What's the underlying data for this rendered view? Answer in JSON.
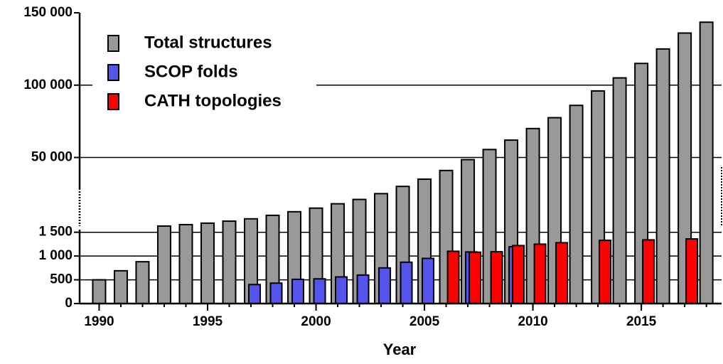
{
  "chart_data": {
    "type": "bar",
    "x_label": "Year",
    "x": [
      1990,
      1991,
      1992,
      1993,
      1994,
      1995,
      1996,
      1997,
      1998,
      1999,
      2000,
      2001,
      2002,
      2003,
      2004,
      2005,
      2006,
      2007,
      2008,
      2009,
      2010,
      2011,
      2012,
      2013,
      2014,
      2015,
      2016,
      2017,
      2018
    ],
    "xlim": [
      1989.1,
      2018.7
    ],
    "xticks": [
      1990,
      1995,
      2000,
      2005,
      2010,
      2015
    ],
    "ylim_lower": [
      0,
      1600
    ],
    "ylim_upper": [
      1600,
      150000
    ],
    "yticks": [
      0,
      500,
      {
        "value": 1000,
        "label": "1 000"
      },
      {
        "value": 1500,
        "label": "1 500"
      },
      {
        "value": 50000,
        "label": "50 000"
      },
      {
        "value": 100000,
        "label": "100 000"
      },
      {
        "value": 150000,
        "label": "150 000"
      }
    ],
    "grid_ticks": [
      0,
      500,
      1000,
      1500,
      50000,
      100000
    ],
    "legend": "upper left",
    "series": [
      {
        "name": "Total structures",
        "color": "#999999",
        "values": [
          500,
          690,
          880,
          2600,
          3600,
          4600,
          6000,
          7600,
          10000,
          12500,
          15000,
          18000,
          21000,
          25000,
          30000,
          35000,
          41000,
          48500,
          55500,
          62000,
          70000,
          77500,
          86000,
          96000,
          105000,
          115000,
          125000,
          136000,
          143500
        ]
      },
      {
        "name": "SCOP folds",
        "color": "#5555ee",
        "values": [
          null,
          null,
          null,
          null,
          null,
          null,
          null,
          400,
          430,
          510,
          520,
          560,
          600,
          750,
          870,
          950,
          null,
          1086,
          null,
          1195,
          null,
          null,
          null,
          null,
          null,
          null,
          null,
          null,
          null
        ]
      },
      {
        "name": "CATH topologies",
        "color": "#ff0000",
        "values": [
          null,
          null,
          null,
          null,
          null,
          null,
          null,
          null,
          null,
          null,
          null,
          null,
          null,
          null,
          null,
          null,
          1100,
          1080,
          1090,
          1220,
          1250,
          1280,
          null,
          1330,
          null,
          1340,
          null,
          1360,
          null
        ]
      }
    ]
  }
}
